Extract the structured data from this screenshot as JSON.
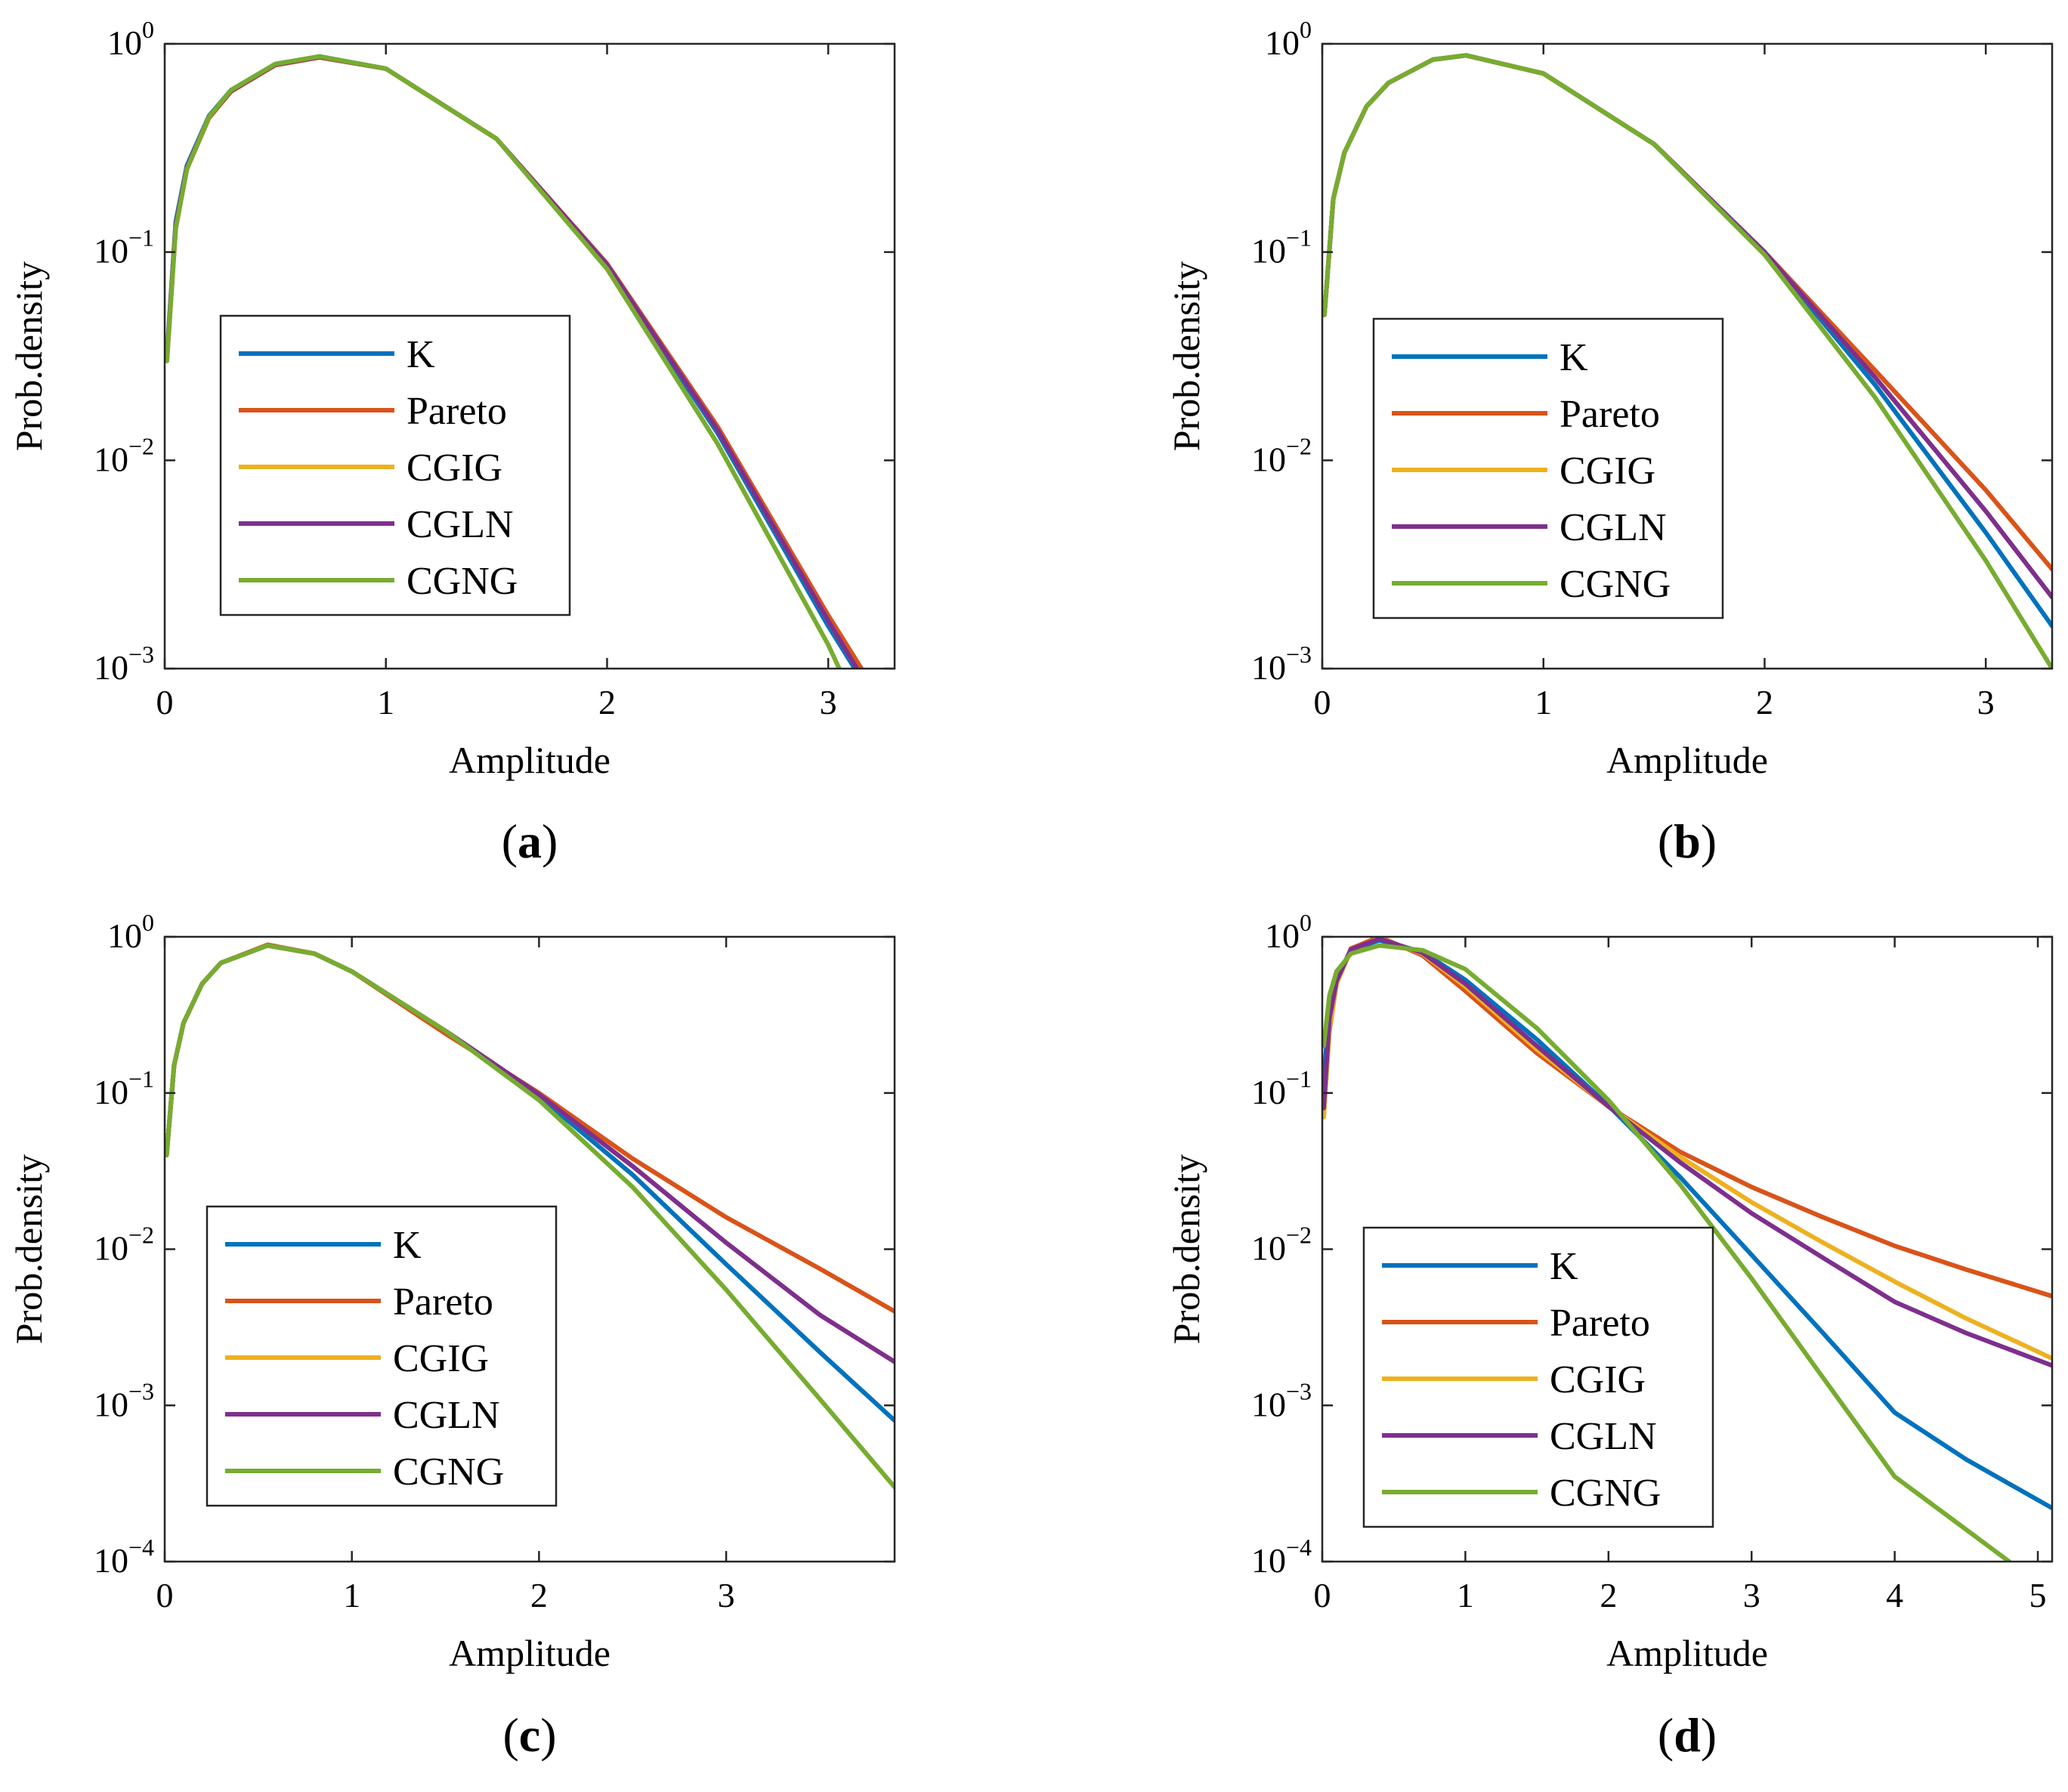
{
  "figure": {
    "series_colors": {
      "K": "#0072BD",
      "Pareto": "#D95319",
      "CGIG": "#EDB120",
      "CGLN": "#7E2F8E",
      "CGNG": "#77AC30"
    }
  },
  "chart_data": [
    {
      "type": "line",
      "panel": "a",
      "caption": {
        "open": "(",
        "letter": "a",
        "close": ")"
      },
      "xlabel": "Amplitude",
      "ylabel": "Prob.density",
      "yscale": "log",
      "xlim": [
        0,
        3.3
      ],
      "ylim": [
        0.001,
        1
      ],
      "xticks": [
        0,
        1,
        2,
        3
      ],
      "xtick_labels": [
        "0",
        "1",
        "2",
        "3"
      ],
      "yticks": [
        1,
        0.1,
        0.01,
        0.001
      ],
      "ytick_labels": [
        {
          "base": "10",
          "exp": "0"
        },
        {
          "base": "10",
          "exp": "−1"
        },
        {
          "base": "10",
          "exp": "−2"
        },
        {
          "base": "10",
          "exp": "−3"
        }
      ],
      "legend_position": "left-middle",
      "series": [
        {
          "name": "K",
          "x": [
            0.01,
            0.05,
            0.1,
            0.2,
            0.3,
            0.5,
            0.7,
            1.0,
            1.5,
            2.0,
            2.5,
            3.0,
            3.12
          ],
          "values": [
            0.032,
            0.14,
            0.26,
            0.45,
            0.6,
            0.8,
            0.87,
            0.76,
            0.35,
            0.085,
            0.0135,
            0.0016,
            0.001
          ]
        },
        {
          "name": "Pareto",
          "x": [
            0.01,
            0.05,
            0.1,
            0.2,
            0.3,
            0.5,
            0.7,
            1.0,
            1.5,
            2.0,
            2.5,
            3.0,
            3.15
          ],
          "values": [
            0.03,
            0.13,
            0.25,
            0.44,
            0.59,
            0.79,
            0.86,
            0.76,
            0.35,
            0.088,
            0.0145,
            0.0018,
            0.001
          ]
        },
        {
          "name": "CGIG",
          "x": [
            0.01,
            0.05,
            0.1,
            0.2,
            0.3,
            0.5,
            0.7,
            1.0,
            1.5,
            2.0,
            2.5,
            3.0,
            3.13
          ],
          "values": [
            0.031,
            0.135,
            0.255,
            0.445,
            0.595,
            0.795,
            0.865,
            0.76,
            0.35,
            0.087,
            0.014,
            0.0017,
            0.001
          ]
        },
        {
          "name": "CGLN",
          "x": [
            0.01,
            0.05,
            0.1,
            0.2,
            0.3,
            0.5,
            0.7,
            1.0,
            1.5,
            2.0,
            2.5,
            3.0,
            3.13
          ],
          "values": [
            0.031,
            0.135,
            0.255,
            0.445,
            0.595,
            0.795,
            0.865,
            0.76,
            0.35,
            0.087,
            0.014,
            0.0017,
            0.001
          ]
        },
        {
          "name": "CGNG",
          "x": [
            0.01,
            0.05,
            0.1,
            0.2,
            0.3,
            0.5,
            0.7,
            1.0,
            1.5,
            2.0,
            2.5,
            3.0,
            3.05
          ],
          "values": [
            0.03,
            0.13,
            0.25,
            0.445,
            0.6,
            0.8,
            0.87,
            0.76,
            0.35,
            0.083,
            0.012,
            0.0013,
            0.001
          ]
        }
      ]
    },
    {
      "type": "line",
      "panel": "b",
      "caption": {
        "open": "(",
        "letter": "b",
        "close": ")"
      },
      "xlabel": "Amplitude",
      "ylabel": "Prob.density",
      "yscale": "log",
      "xlim": [
        0,
        3.3
      ],
      "ylim": [
        0.001,
        1
      ],
      "xticks": [
        0,
        1,
        2,
        3
      ],
      "xtick_labels": [
        "0",
        "1",
        "2",
        "3"
      ],
      "yticks": [
        1,
        0.1,
        0.01,
        0.001
      ],
      "ytick_labels": [
        {
          "base": "10",
          "exp": "0"
        },
        {
          "base": "10",
          "exp": "−1"
        },
        {
          "base": "10",
          "exp": "−2"
        },
        {
          "base": "10",
          "exp": "−3"
        }
      ],
      "legend_position": "left-middle",
      "series": [
        {
          "name": "K",
          "x": [
            0.01,
            0.05,
            0.1,
            0.2,
            0.3,
            0.5,
            0.65,
            1.0,
            1.5,
            2.0,
            2.5,
            3.0,
            3.3
          ],
          "values": [
            0.05,
            0.18,
            0.3,
            0.5,
            0.65,
            0.84,
            0.88,
            0.72,
            0.33,
            0.1,
            0.023,
            0.0045,
            0.0016
          ]
        },
        {
          "name": "Pareto",
          "x": [
            0.01,
            0.05,
            0.1,
            0.2,
            0.3,
            0.5,
            0.65,
            1.0,
            1.5,
            2.0,
            2.5,
            3.0,
            3.3
          ],
          "values": [
            0.05,
            0.18,
            0.3,
            0.5,
            0.65,
            0.84,
            0.88,
            0.72,
            0.33,
            0.1,
            0.027,
            0.0072,
            0.003
          ]
        },
        {
          "name": "CGIG",
          "x": [
            0.01,
            0.05,
            0.1,
            0.2,
            0.3,
            0.5,
            0.65,
            1.0,
            1.5,
            2.0,
            2.5,
            3.0,
            3.3
          ],
          "values": [
            0.05,
            0.18,
            0.3,
            0.5,
            0.65,
            0.84,
            0.88,
            0.72,
            0.33,
            0.1,
            0.025,
            0.0057,
            0.0022
          ]
        },
        {
          "name": "CGLN",
          "x": [
            0.01,
            0.05,
            0.1,
            0.2,
            0.3,
            0.5,
            0.65,
            1.0,
            1.5,
            2.0,
            2.5,
            3.0,
            3.3
          ],
          "values": [
            0.05,
            0.18,
            0.3,
            0.5,
            0.65,
            0.84,
            0.88,
            0.72,
            0.33,
            0.1,
            0.025,
            0.0057,
            0.0022
          ]
        },
        {
          "name": "CGNG",
          "x": [
            0.01,
            0.05,
            0.1,
            0.2,
            0.3,
            0.5,
            0.65,
            1.0,
            1.5,
            2.0,
            2.5,
            3.0,
            3.3
          ],
          "values": [
            0.05,
            0.18,
            0.3,
            0.5,
            0.65,
            0.84,
            0.88,
            0.72,
            0.33,
            0.097,
            0.02,
            0.0033,
            0.001
          ]
        }
      ]
    },
    {
      "type": "line",
      "panel": "c",
      "caption": {
        "open": "(",
        "letter": "c",
        "close": ")"
      },
      "xlabel": "Amplitude",
      "ylabel": "Prob.density",
      "yscale": "log",
      "xlim": [
        0,
        3.9
      ],
      "ylim": [
        0.0001,
        1
      ],
      "xticks": [
        0,
        1,
        2,
        3
      ],
      "xtick_labels": [
        "0",
        "1",
        "2",
        "3"
      ],
      "yticks": [
        1,
        0.1,
        0.01,
        0.001,
        0.0001
      ],
      "ytick_labels": [
        {
          "base": "10",
          "exp": "0"
        },
        {
          "base": "10",
          "exp": "−1"
        },
        {
          "base": "10",
          "exp": "−2"
        },
        {
          "base": "10",
          "exp": "−3"
        },
        {
          "base": "10",
          "exp": "−4"
        }
      ],
      "legend_position": "bottom-left",
      "series": [
        {
          "name": "K",
          "x": [
            0.01,
            0.05,
            0.1,
            0.2,
            0.3,
            0.55,
            0.8,
            1.0,
            1.5,
            2.0,
            2.5,
            3.0,
            3.5,
            3.9
          ],
          "values": [
            0.04,
            0.15,
            0.28,
            0.5,
            0.68,
            0.88,
            0.78,
            0.6,
            0.25,
            0.095,
            0.03,
            0.008,
            0.0022,
            0.0008
          ]
        },
        {
          "name": "Pareto",
          "x": [
            0.01,
            0.05,
            0.1,
            0.2,
            0.3,
            0.55,
            0.8,
            1.0,
            1.5,
            2.0,
            2.5,
            3.0,
            3.5,
            3.9
          ],
          "values": [
            0.04,
            0.15,
            0.28,
            0.5,
            0.68,
            0.89,
            0.78,
            0.6,
            0.24,
            0.1,
            0.038,
            0.016,
            0.0075,
            0.004
          ]
        },
        {
          "name": "CGIG",
          "x": [
            0.01,
            0.05,
            0.1,
            0.2,
            0.3,
            0.55,
            0.8,
            1.0,
            1.5,
            2.0,
            2.5,
            3.0,
            3.5,
            3.9
          ],
          "values": [
            0.04,
            0.15,
            0.28,
            0.5,
            0.68,
            0.88,
            0.78,
            0.6,
            0.25,
            0.098,
            0.034,
            0.011,
            0.0038,
            0.0019
          ]
        },
        {
          "name": "CGLN",
          "x": [
            0.01,
            0.05,
            0.1,
            0.2,
            0.3,
            0.55,
            0.8,
            1.0,
            1.5,
            2.0,
            2.5,
            3.0,
            3.5,
            3.9
          ],
          "values": [
            0.04,
            0.15,
            0.28,
            0.5,
            0.68,
            0.88,
            0.78,
            0.6,
            0.25,
            0.098,
            0.034,
            0.011,
            0.0038,
            0.0019
          ]
        },
        {
          "name": "CGNG",
          "x": [
            0.01,
            0.05,
            0.1,
            0.2,
            0.3,
            0.55,
            0.8,
            1.0,
            1.5,
            2.0,
            2.5,
            3.0,
            3.5,
            3.9
          ],
          "values": [
            0.04,
            0.15,
            0.28,
            0.5,
            0.68,
            0.88,
            0.78,
            0.6,
            0.25,
            0.09,
            0.025,
            0.0055,
            0.0011,
            0.0003
          ]
        }
      ]
    },
    {
      "type": "line",
      "panel": "d",
      "caption": {
        "open": "(",
        "letter": "d",
        "close": ")"
      },
      "xlabel": "Amplitude",
      "ylabel": "Prob.density",
      "yscale": "log",
      "xlim": [
        0,
        5.1
      ],
      "ylim": [
        0.0001,
        1
      ],
      "xticks": [
        0,
        1,
        2,
        3,
        4,
        5
      ],
      "xtick_labels": [
        "0",
        "1",
        "2",
        "3",
        "4",
        "5"
      ],
      "yticks": [
        1,
        0.1,
        0.01,
        0.001,
        0.0001
      ],
      "ytick_labels": [
        {
          "base": "10",
          "exp": "0"
        },
        {
          "base": "10",
          "exp": "−1"
        },
        {
          "base": "10",
          "exp": "−2"
        },
        {
          "base": "10",
          "exp": "−3"
        },
        {
          "base": "10",
          "exp": "−4"
        }
      ],
      "legend_position": "bottom-left",
      "series": [
        {
          "name": "K",
          "x": [
            0.01,
            0.05,
            0.1,
            0.2,
            0.4,
            0.7,
            1.0,
            1.5,
            2.0,
            2.5,
            3.0,
            3.5,
            4.0,
            4.5,
            5.1
          ],
          "values": [
            0.12,
            0.35,
            0.55,
            0.82,
            0.95,
            0.8,
            0.53,
            0.22,
            0.083,
            0.029,
            0.0092,
            0.0029,
            0.0009,
            0.00045,
            0.00022
          ]
        },
        {
          "name": "Pareto",
          "x": [
            0.01,
            0.05,
            0.1,
            0.2,
            0.4,
            0.7,
            1.0,
            1.5,
            2.0,
            2.5,
            3.0,
            3.5,
            4.0,
            4.5,
            5.1
          ],
          "values": [
            0.07,
            0.25,
            0.5,
            0.84,
            1.0,
            0.76,
            0.45,
            0.18,
            0.082,
            0.042,
            0.025,
            0.016,
            0.0105,
            0.0074,
            0.005
          ]
        },
        {
          "name": "CGIG",
          "x": [
            0.01,
            0.05,
            0.1,
            0.2,
            0.4,
            0.7,
            1.0,
            1.5,
            2.0,
            2.5,
            3.0,
            3.5,
            4.0,
            4.5,
            5.1
          ],
          "values": [
            0.07,
            0.26,
            0.5,
            0.82,
            0.98,
            0.78,
            0.48,
            0.19,
            0.082,
            0.039,
            0.02,
            0.011,
            0.0062,
            0.0036,
            0.002
          ]
        },
        {
          "name": "CGLN",
          "x": [
            0.01,
            0.05,
            0.1,
            0.2,
            0.4,
            0.7,
            1.0,
            1.5,
            2.0,
            2.5,
            3.0,
            3.5,
            4.0,
            4.5,
            5.1
          ],
          "values": [
            0.08,
            0.3,
            0.52,
            0.83,
            0.97,
            0.79,
            0.5,
            0.2,
            0.082,
            0.036,
            0.017,
            0.0088,
            0.0046,
            0.0029,
            0.0018
          ]
        },
        {
          "name": "CGNG",
          "x": [
            0.01,
            0.05,
            0.1,
            0.2,
            0.4,
            0.7,
            1.0,
            1.5,
            2.0,
            2.5,
            3.0,
            3.5,
            4.0,
            4.5,
            4.8
          ],
          "values": [
            0.2,
            0.42,
            0.6,
            0.78,
            0.88,
            0.82,
            0.62,
            0.26,
            0.09,
            0.026,
            0.0065,
            0.0015,
            0.00035,
            0.00016,
            0.0001
          ]
        }
      ]
    }
  ]
}
